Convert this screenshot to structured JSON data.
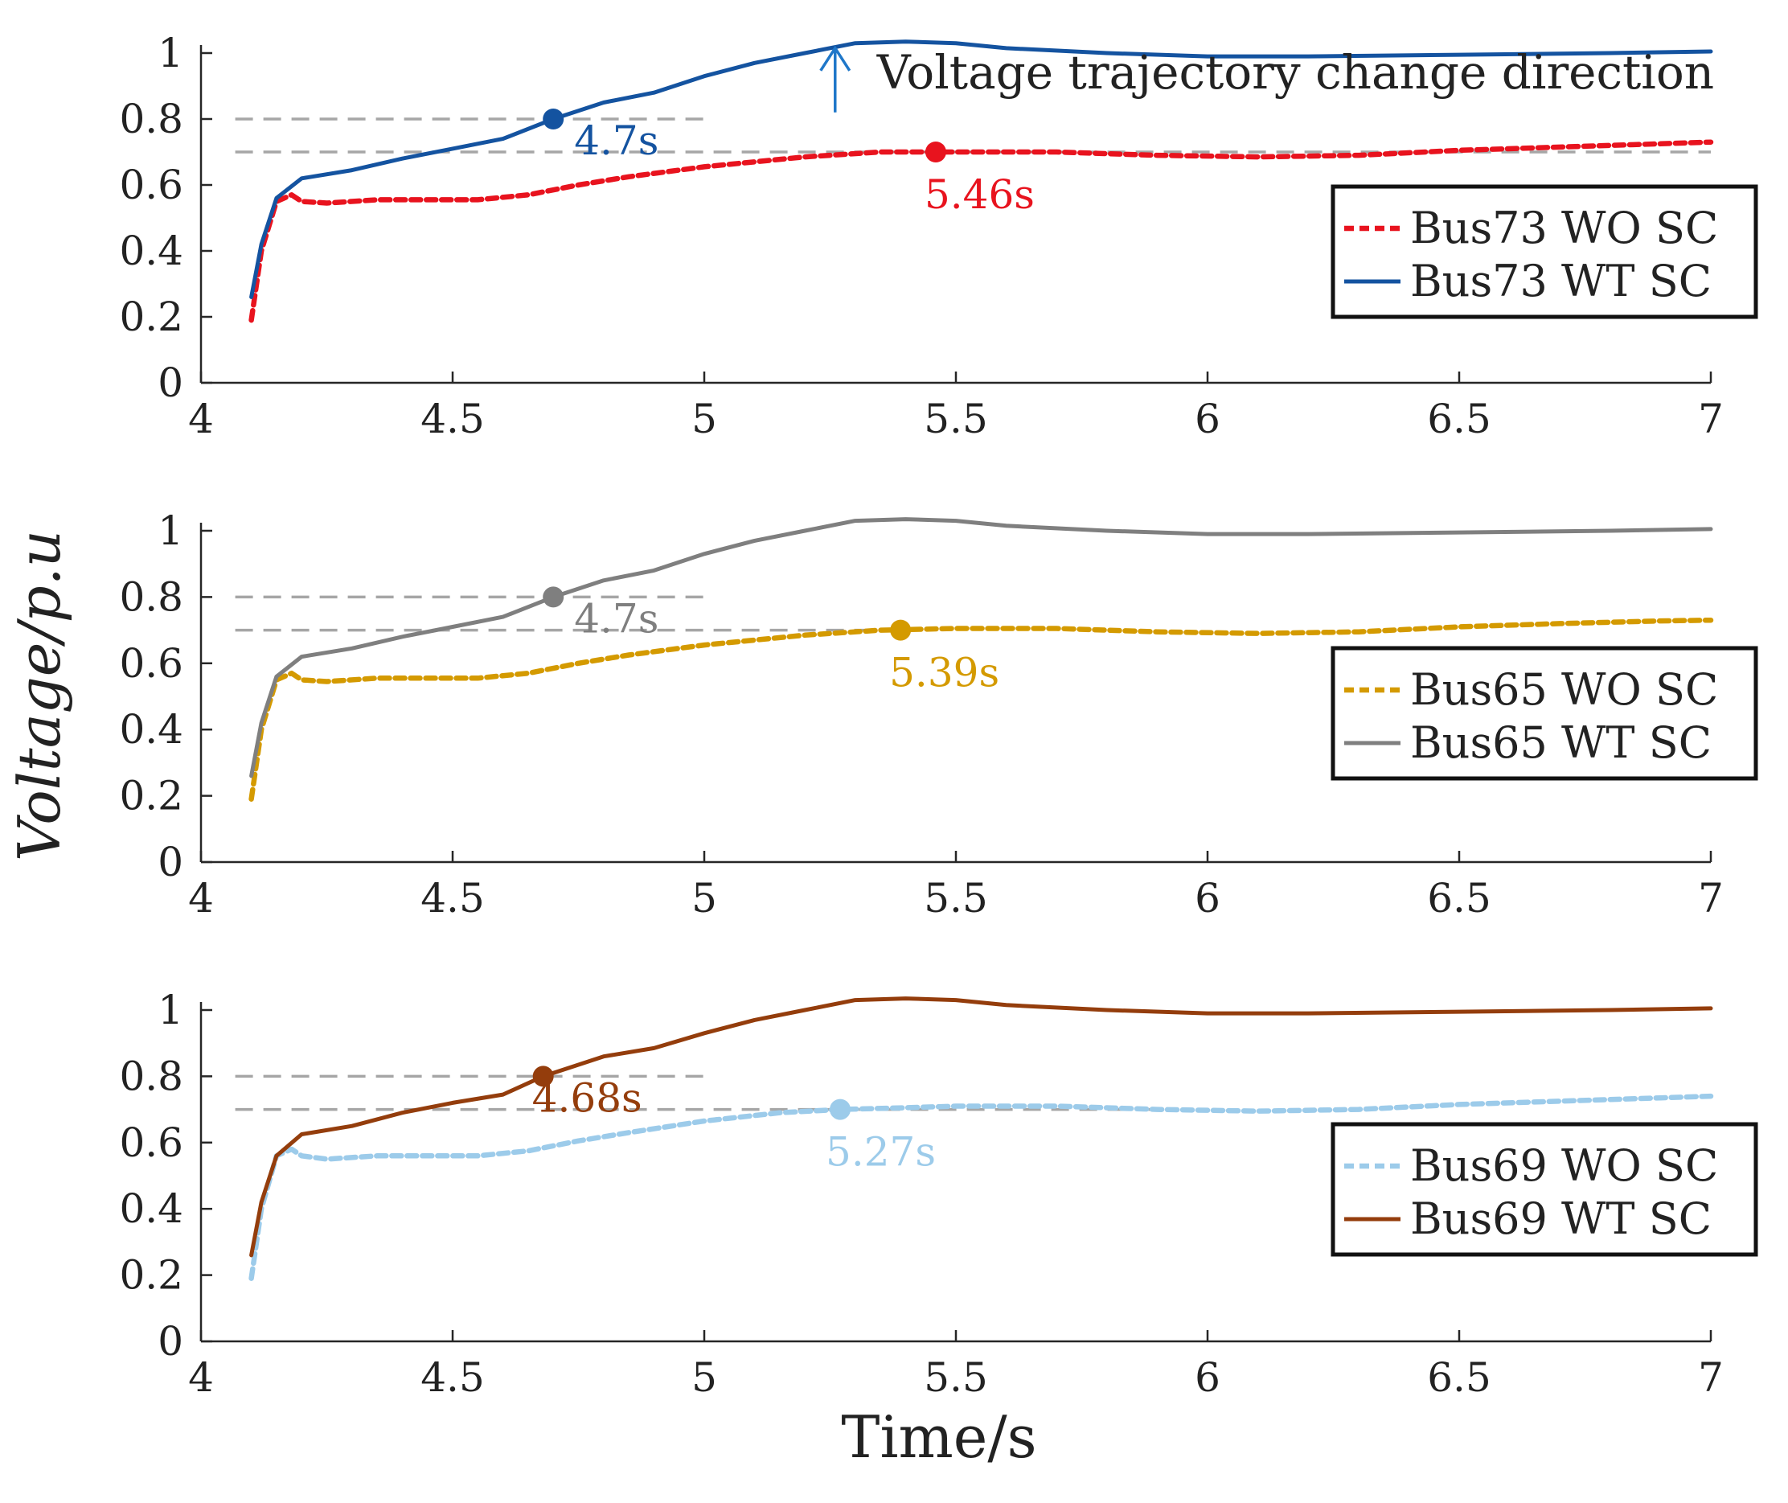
{
  "figure": {
    "ylabel": "Voltage/p.u",
    "xlabel": "Time/s"
  },
  "chart_data": [
    {
      "type": "line",
      "xlim": [
        4,
        7
      ],
      "ylim": [
        0,
        1
      ],
      "xticks": [
        4,
        4.5,
        5,
        5.5,
        6,
        6.5,
        7
      ],
      "xtick_labels": [
        "4",
        "4.5",
        "5",
        "5.5",
        "6",
        "6.5",
        "7"
      ],
      "yticks": [
        0,
        0.2,
        0.4,
        0.6,
        0.8,
        1
      ],
      "ytick_labels": [
        "0",
        "0.2",
        "0.4",
        "0.6",
        "0.8",
        "1"
      ],
      "legend_position": "right",
      "threshold_lines": [
        {
          "y": 0.8,
          "x_range": [
            4.1,
            5
          ]
        },
        {
          "y": 0.7,
          "x_range": [
            4.1,
            7
          ]
        }
      ],
      "series": [
        {
          "name": "Bus73 WO SC",
          "color": "#e8131e",
          "style": "dashed",
          "x": [
            4.1,
            4.12,
            4.15,
            4.18,
            4.2,
            4.25,
            4.35,
            4.45,
            4.55,
            4.65,
            4.75,
            4.85,
            5.0,
            5.2,
            5.35,
            5.5,
            5.7,
            5.9,
            6.1,
            6.3,
            6.5,
            6.7,
            6.9,
            7.0
          ],
          "y": [
            0.19,
            0.4,
            0.55,
            0.57,
            0.55,
            0.545,
            0.555,
            0.555,
            0.555,
            0.57,
            0.6,
            0.625,
            0.655,
            0.685,
            0.7,
            0.7,
            0.7,
            0.69,
            0.685,
            0.69,
            0.705,
            0.715,
            0.725,
            0.73
          ],
          "marker": {
            "x": 5.46,
            "y": 0.7,
            "label": "5.46s"
          }
        },
        {
          "name": "Bus73 WT SC",
          "color": "#1453a0",
          "style": "solid",
          "x": [
            4.1,
            4.12,
            4.15,
            4.2,
            4.3,
            4.4,
            4.5,
            4.6,
            4.7,
            4.8,
            4.9,
            5.0,
            5.1,
            5.2,
            5.3,
            5.4,
            5.5,
            5.6,
            5.8,
            6.0,
            6.2,
            6.5,
            6.8,
            7.0
          ],
          "y": [
            0.26,
            0.42,
            0.56,
            0.62,
            0.645,
            0.68,
            0.71,
            0.74,
            0.8,
            0.85,
            0.88,
            0.93,
            0.97,
            1.0,
            1.03,
            1.035,
            1.03,
            1.015,
            1.0,
            0.99,
            0.99,
            0.995,
            1.0,
            1.005
          ],
          "marker": {
            "x": 4.7,
            "y": 0.8,
            "label": "4.7s"
          }
        }
      ],
      "annotations": [
        {
          "text": "Voltage trajectory change direction",
          "x": 5.26,
          "y": 0.82,
          "arrow": "up"
        }
      ]
    },
    {
      "type": "line",
      "xlim": [
        4,
        7
      ],
      "ylim": [
        0,
        1
      ],
      "xticks": [
        4,
        4.5,
        5,
        5.5,
        6,
        6.5,
        7
      ],
      "xtick_labels": [
        "4",
        "4.5",
        "5",
        "5.5",
        "6",
        "6.5",
        "7"
      ],
      "yticks": [
        0,
        0.2,
        0.4,
        0.6,
        0.8,
        1
      ],
      "ytick_labels": [
        "0",
        "0.2",
        "0.4",
        "0.6",
        "0.8",
        "1"
      ],
      "legend_position": "right",
      "threshold_lines": [
        {
          "y": 0.8,
          "x_range": [
            4.1,
            5
          ]
        },
        {
          "y": 0.7,
          "x_range": [
            4.1,
            5.4
          ]
        }
      ],
      "series": [
        {
          "name": "Bus65 WO SC",
          "color": "#d49a00",
          "style": "dashed",
          "x": [
            4.1,
            4.12,
            4.15,
            4.18,
            4.2,
            4.25,
            4.35,
            4.45,
            4.55,
            4.65,
            4.75,
            4.85,
            5.0,
            5.2,
            5.35,
            5.5,
            5.7,
            5.9,
            6.1,
            6.3,
            6.5,
            6.7,
            6.9,
            7.0
          ],
          "y": [
            0.19,
            0.4,
            0.55,
            0.57,
            0.55,
            0.545,
            0.555,
            0.555,
            0.555,
            0.57,
            0.6,
            0.625,
            0.655,
            0.685,
            0.7,
            0.705,
            0.705,
            0.695,
            0.69,
            0.695,
            0.71,
            0.72,
            0.728,
            0.73
          ],
          "marker": {
            "x": 5.39,
            "y": 0.7,
            "label": "5.39s"
          }
        },
        {
          "name": "Bus65 WT SC",
          "color": "#7f7f7f",
          "style": "solid",
          "x": [
            4.1,
            4.12,
            4.15,
            4.2,
            4.3,
            4.4,
            4.5,
            4.6,
            4.7,
            4.8,
            4.9,
            5.0,
            5.1,
            5.2,
            5.3,
            5.4,
            5.5,
            5.6,
            5.8,
            6.0,
            6.2,
            6.5,
            6.8,
            7.0
          ],
          "y": [
            0.26,
            0.42,
            0.56,
            0.62,
            0.645,
            0.68,
            0.71,
            0.74,
            0.8,
            0.85,
            0.88,
            0.93,
            0.97,
            1.0,
            1.03,
            1.035,
            1.03,
            1.015,
            1.0,
            0.99,
            0.99,
            0.995,
            1.0,
            1.005
          ],
          "marker": {
            "x": 4.7,
            "y": 0.8,
            "label": "4.7s"
          }
        }
      ],
      "annotations": []
    },
    {
      "type": "line",
      "xlim": [
        4,
        7
      ],
      "ylim": [
        0,
        1
      ],
      "xticks": [
        4,
        4.5,
        5,
        5.5,
        6,
        6.5,
        7
      ],
      "xtick_labels": [
        "4",
        "4.5",
        "5",
        "5.5",
        "6",
        "6.5",
        "7"
      ],
      "yticks": [
        0,
        0.2,
        0.4,
        0.6,
        0.8,
        1
      ],
      "ytick_labels": [
        "0",
        "0.2",
        "0.4",
        "0.6",
        "0.8",
        "1"
      ],
      "legend_position": "right",
      "threshold_lines": [
        {
          "y": 0.8,
          "x_range": [
            4.1,
            5
          ]
        },
        {
          "y": 0.7,
          "x_range": [
            4.1,
            5.9
          ]
        }
      ],
      "series": [
        {
          "name": "Bus69 WO SC",
          "color": "#9ccbea",
          "style": "dashed",
          "x": [
            4.1,
            4.12,
            4.15,
            4.18,
            4.2,
            4.25,
            4.35,
            4.45,
            4.55,
            4.65,
            4.75,
            4.85,
            5.0,
            5.15,
            5.27,
            5.4,
            5.5,
            5.7,
            5.9,
            6.1,
            6.3,
            6.5,
            6.7,
            6.9,
            7.0
          ],
          "y": [
            0.19,
            0.4,
            0.56,
            0.58,
            0.56,
            0.55,
            0.56,
            0.56,
            0.56,
            0.575,
            0.605,
            0.63,
            0.665,
            0.69,
            0.7,
            0.705,
            0.71,
            0.71,
            0.7,
            0.695,
            0.7,
            0.715,
            0.725,
            0.735,
            0.74
          ],
          "marker": {
            "x": 5.27,
            "y": 0.7,
            "label": "5.27s"
          }
        },
        {
          "name": "Bus69 WT SC",
          "color": "#943d0c",
          "style": "solid",
          "x": [
            4.1,
            4.12,
            4.15,
            4.2,
            4.3,
            4.4,
            4.5,
            4.6,
            4.68,
            4.8,
            4.9,
            5.0,
            5.1,
            5.2,
            5.3,
            5.4,
            5.5,
            5.6,
            5.8,
            6.0,
            6.2,
            6.5,
            6.8,
            7.0
          ],
          "y": [
            0.26,
            0.42,
            0.56,
            0.625,
            0.65,
            0.69,
            0.72,
            0.745,
            0.8,
            0.86,
            0.885,
            0.93,
            0.97,
            1.0,
            1.03,
            1.035,
            1.03,
            1.015,
            1.0,
            0.99,
            0.99,
            0.995,
            1.0,
            1.005
          ],
          "marker": {
            "x": 4.68,
            "y": 0.8,
            "label": "4.68s"
          }
        }
      ],
      "annotations": []
    }
  ]
}
